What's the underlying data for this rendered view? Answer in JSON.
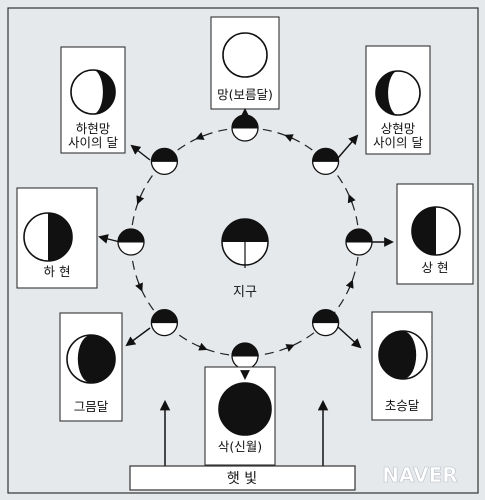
{
  "colors": {
    "background": "#e6e9ec",
    "panel": "#ffffff",
    "ink": "#111111",
    "watermark": "#ffffff"
  },
  "earth_label": "지구",
  "sunlight_label": "햇 빛",
  "watermark": "NAVER",
  "phases": [
    {
      "id": "full-moon",
      "lines": [
        "망(보름달)"
      ],
      "lit": "full"
    },
    {
      "id": "waxing-gibbous",
      "lines": [
        "상현망",
        "사이의 달"
      ],
      "lit": "gibbous-right"
    },
    {
      "id": "first-quarter",
      "lines": [
        "상 현"
      ],
      "lit": "right-half"
    },
    {
      "id": "waxing-crescent",
      "lines": [
        "초승달"
      ],
      "lit": "crescent-right"
    },
    {
      "id": "new-moon",
      "lines": [
        "삭(신월)"
      ],
      "lit": "none"
    },
    {
      "id": "waning-crescent",
      "lines": [
        "그믐달"
      ],
      "lit": "crescent-left"
    },
    {
      "id": "last-quarter",
      "lines": [
        "하 현"
      ],
      "lit": "left-half"
    },
    {
      "id": "waning-gibbous",
      "lines": [
        "하현망",
        "사이의 달"
      ],
      "lit": "gibbous-left"
    }
  ]
}
